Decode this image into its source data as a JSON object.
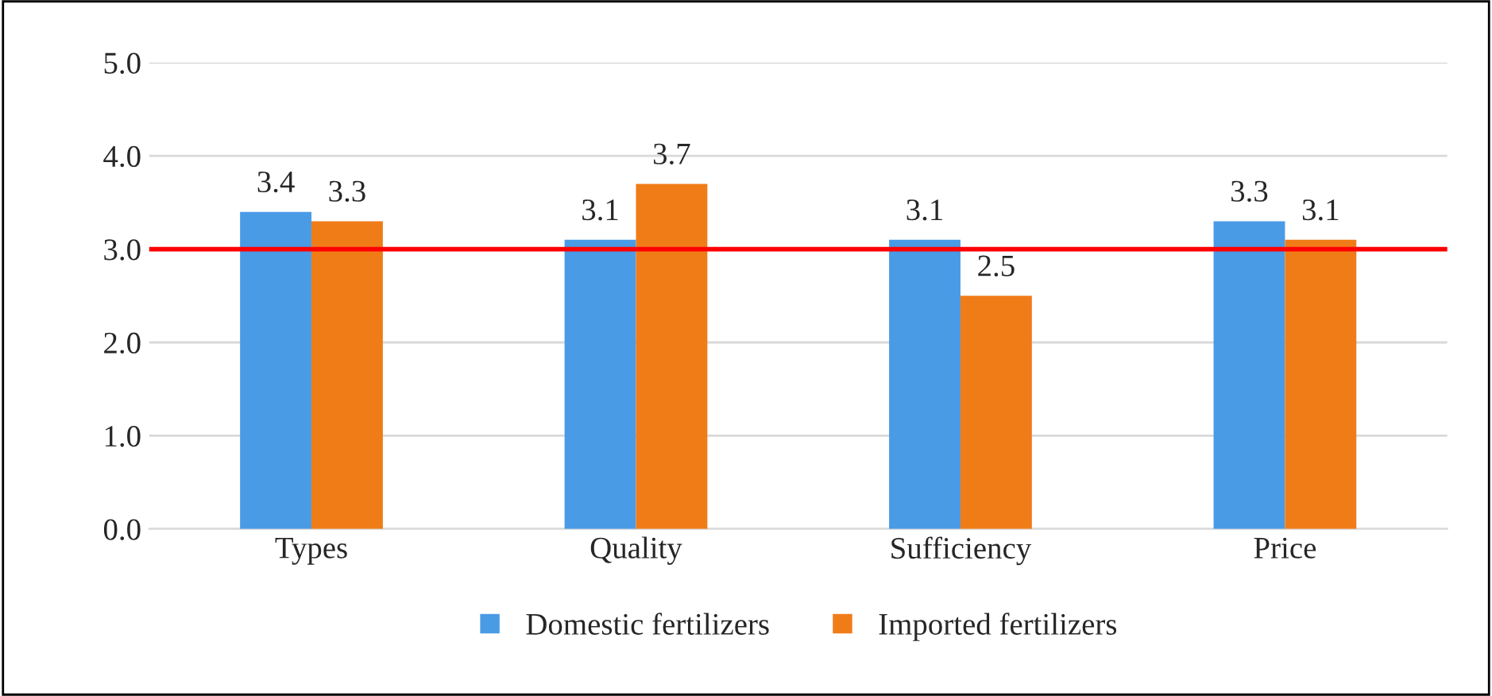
{
  "chart_data": {
    "type": "bar",
    "categories": [
      "Types",
      "Quality",
      "Sufficiency",
      "Price"
    ],
    "series": [
      {
        "name": "Domestic fertilizers",
        "color": "#4a9be6",
        "values": [
          3.4,
          3.1,
          3.1,
          3.3
        ]
      },
      {
        "name": "Imported fertilizers",
        "color": "#f07c18",
        "values": [
          3.3,
          3.7,
          2.5,
          3.1
        ]
      }
    ],
    "ylim": [
      0,
      5
    ],
    "yticks": [
      {
        "value": 0,
        "label": "0.0"
      },
      {
        "value": 1,
        "label": "1.0"
      },
      {
        "value": 2,
        "label": "2.0"
      },
      {
        "value": 3,
        "label": "3.0"
      },
      {
        "value": 4,
        "label": "4.0"
      },
      {
        "value": 5,
        "label": "5.0"
      }
    ],
    "grid": "y",
    "legend": "bottom",
    "data_labels": true,
    "ref_lines": [
      {
        "axis": "y",
        "value": 3.0,
        "color": "#ff0000"
      }
    ]
  }
}
